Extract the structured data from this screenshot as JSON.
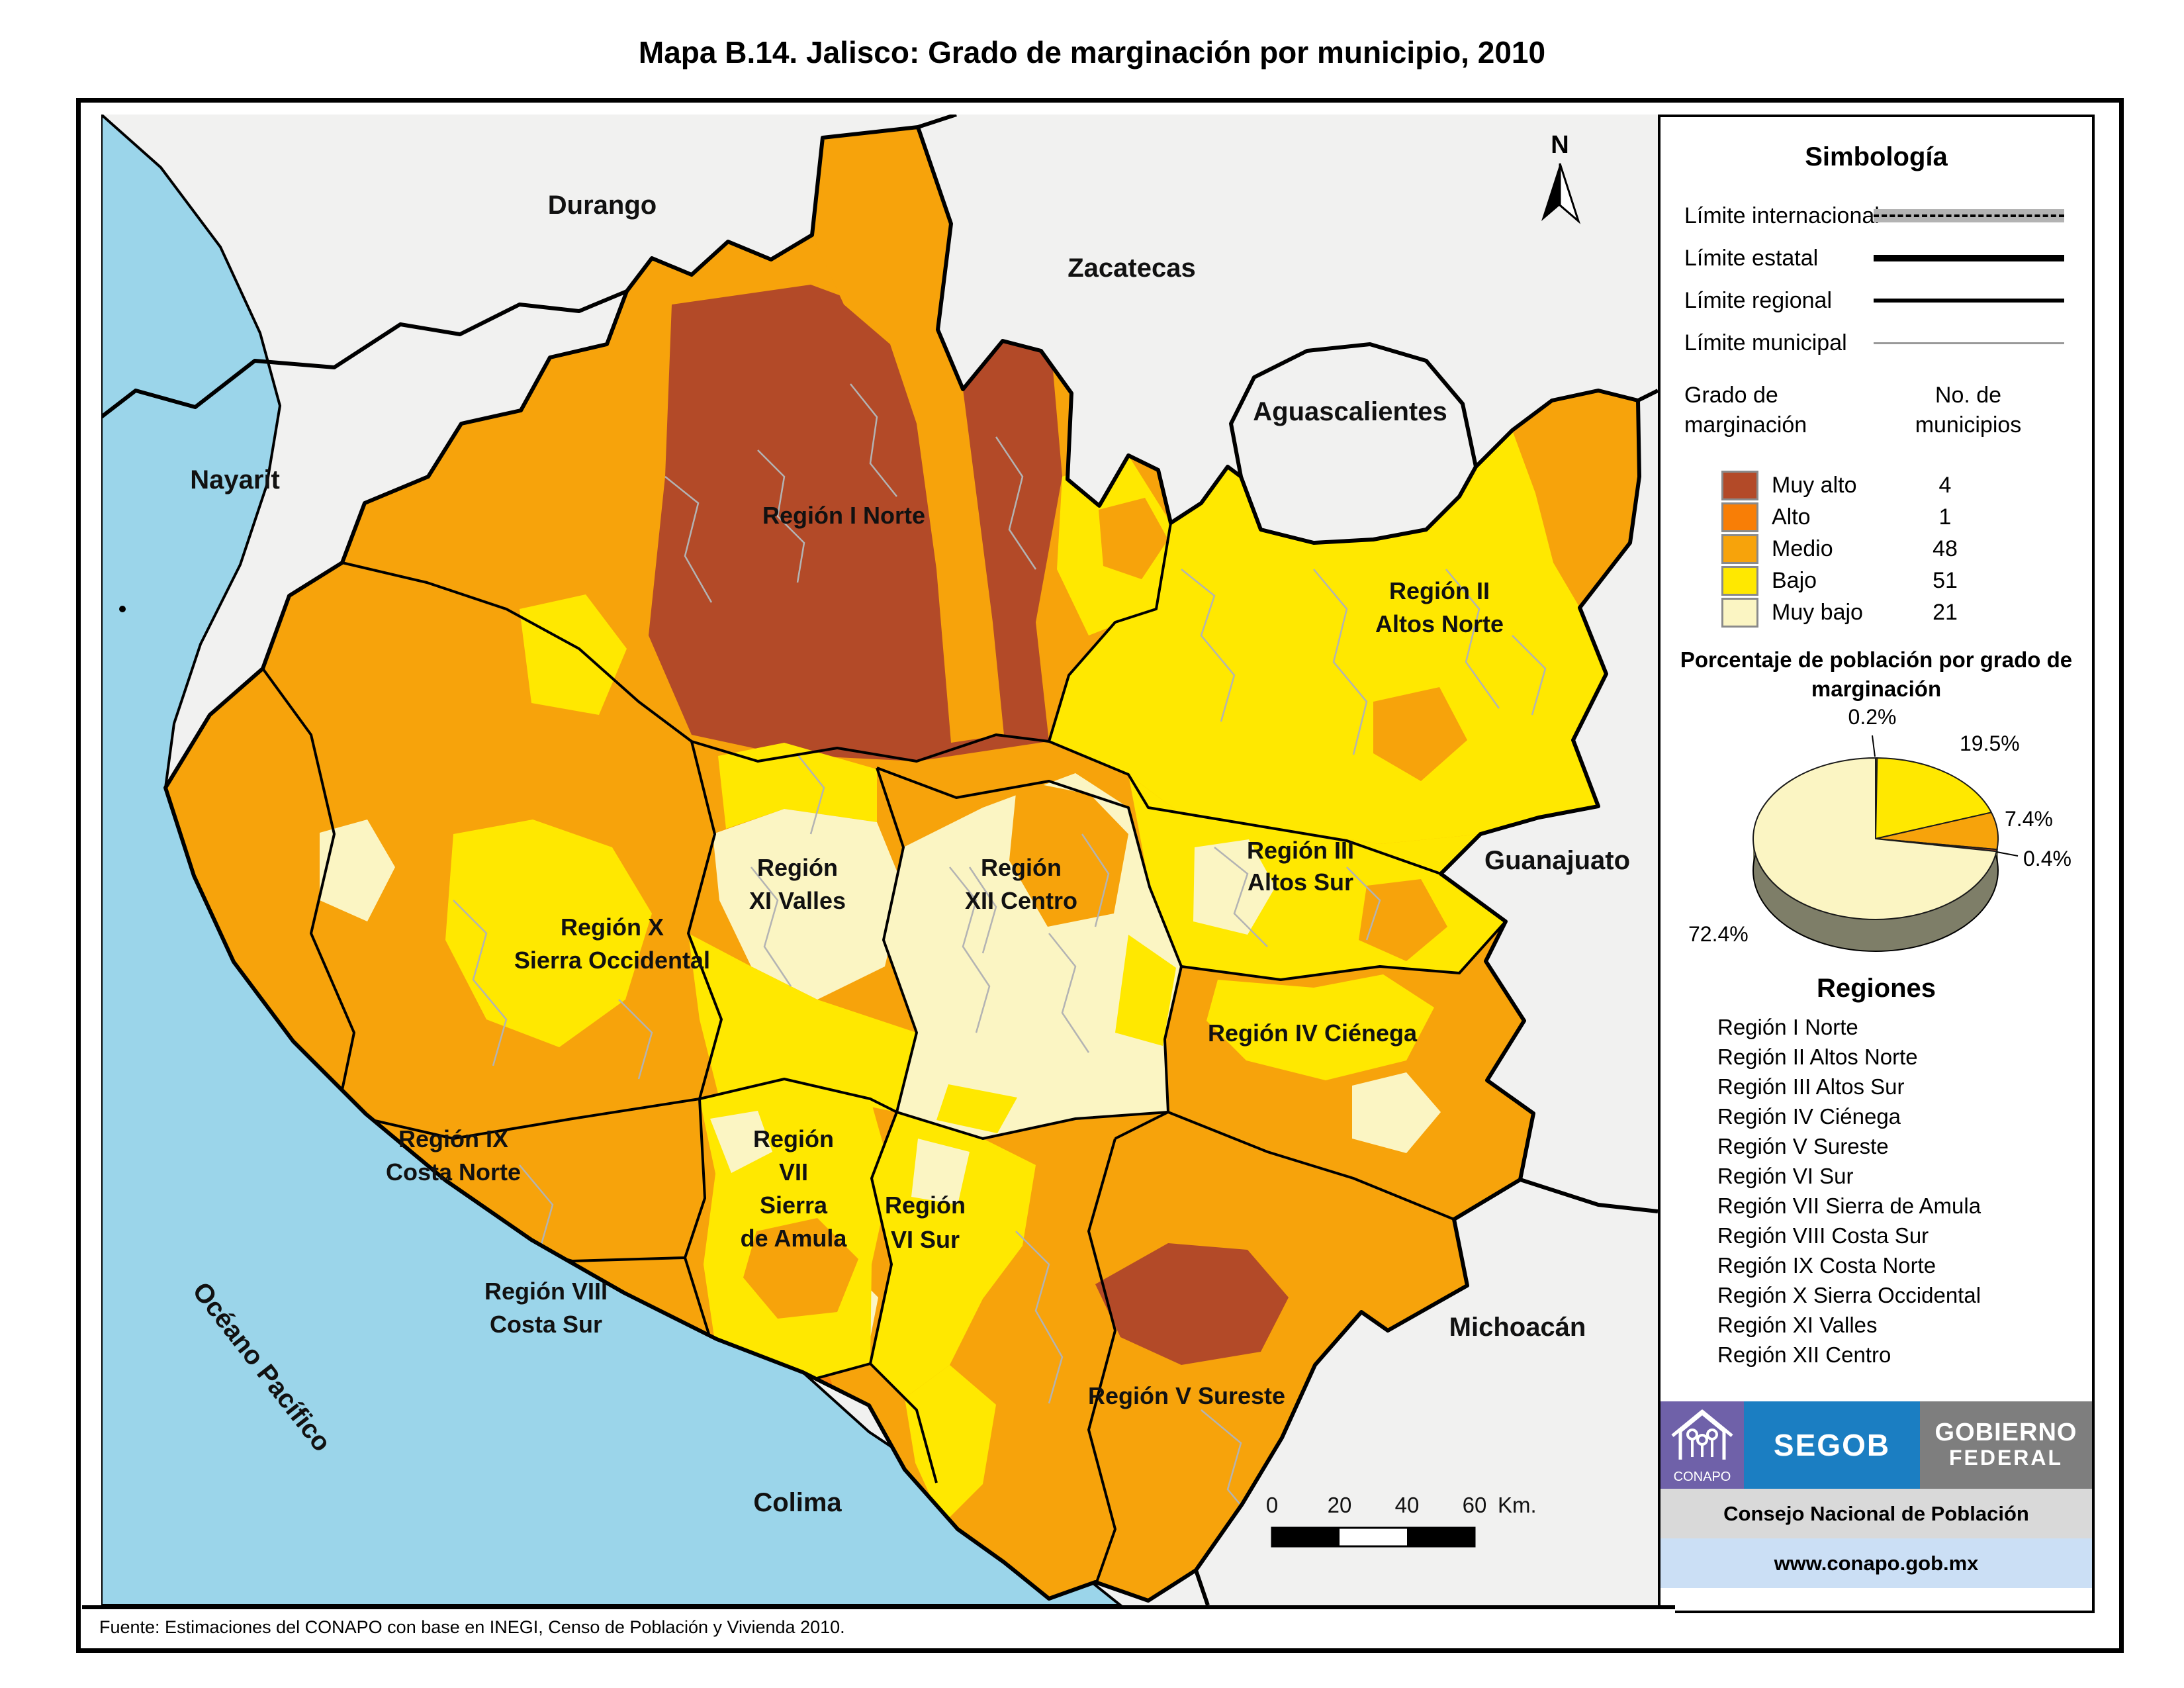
{
  "page": {
    "title": "Mapa B.14. Jalisco: Grado de marginación por municipio, 2010",
    "source": "Fuente: Estimaciones del CONAPO con base en INEGI, Censo de Población y Vivienda 2010."
  },
  "palette": {
    "muy_alto": "#B34A28",
    "alto": "#F87E06",
    "medio": "#F7A30B",
    "bajo": "#FFE800",
    "muy_bajo": "#FBF5C3",
    "ocean": "#9BD5EA",
    "outside": "#F1F1F0",
    "municipal_line": "#B3B3B3",
    "pie_rim": "#7E7E68",
    "intl_bar": "#B3B3B3",
    "conapo_purple": "#6F61A9",
    "segob_blue": "#1B7EC2",
    "gob_gray": "#7E7E7E",
    "consejo_bar": "#D9D9D9",
    "url_bar": "#CBDFF5"
  },
  "map": {
    "north": "N",
    "ocean_label": "Océano Pacífico",
    "states": [
      "Durango",
      "Zacatecas",
      "Aguascalientes",
      "Nayarit",
      "Guanajuato",
      "Michoacán",
      "Colima"
    ],
    "region_labels": [
      {
        "lines": [
          "Región I Norte"
        ]
      },
      {
        "lines": [
          "Región II",
          "Altos Norte"
        ]
      },
      {
        "lines": [
          "Región III",
          "Altos Sur"
        ]
      },
      {
        "lines": [
          "Región",
          "XII Centro"
        ]
      },
      {
        "lines": [
          "Región",
          "XI Valles"
        ]
      },
      {
        "lines": [
          "Región IV Ciénega"
        ]
      },
      {
        "lines": [
          "Región X",
          "Sierra Occidental"
        ]
      },
      {
        "lines": [
          "Región IX",
          "Costa Norte"
        ]
      },
      {
        "lines": [
          "Región VIII",
          "Costa Sur"
        ]
      },
      {
        "lines": [
          "Región",
          "VII",
          "Sierra",
          "de Amula"
        ]
      },
      {
        "lines": [
          "Región",
          "VI Sur"
        ]
      },
      {
        "lines": [
          "Región V Sureste"
        ]
      }
    ],
    "scale": {
      "ticks": [
        "0",
        "20",
        "40",
        "60"
      ],
      "unit": "Km."
    }
  },
  "sidebar": {
    "symbology_title": "Simbología",
    "boundaries": [
      {
        "label": "Límite internacional"
      },
      {
        "label": "Límite estatal"
      },
      {
        "label": "Límite regional"
      },
      {
        "label": "Límite municipal"
      }
    ],
    "degree_header_l1": "Grado de",
    "degree_header_l2": "marginación",
    "count_header_l1": "No. de",
    "count_header_l2": "municipios",
    "classes": [
      {
        "label": "Muy alto",
        "count": "4",
        "color_key": "muy_alto"
      },
      {
        "label": "Alto",
        "count": "1",
        "color_key": "alto"
      },
      {
        "label": "Medio",
        "count": "48",
        "color_key": "medio"
      },
      {
        "label": "Bajo",
        "count": "51",
        "color_key": "bajo"
      },
      {
        "label": "Muy bajo",
        "count": "21",
        "color_key": "muy_bajo"
      }
    ],
    "regions_title": "Regiones",
    "regions": [
      "Región I Norte",
      "Región II Altos Norte",
      "Región III Altos Sur",
      "Región IV Ciénega",
      "Región V Sureste",
      "Región VI Sur",
      "Región VII Sierra de Amula",
      "Región VIII Costa Sur",
      "Región IX Costa Norte",
      "Región X Sierra Occidental",
      "Región XI Valles",
      "Región XII Centro"
    ],
    "logos": {
      "conapo": "CONAPO",
      "segob": "SEGOB",
      "gob_l1": "Gobierno",
      "gob_l2": "Federal",
      "consejo": "Consejo Nacional de Población",
      "url": "www.conapo.gob.mx"
    }
  },
  "chart_data": {
    "type": "pie",
    "title": "Porcentaje de población por grado de marginación",
    "note": "slices drawn clockwise from 12 o'clock",
    "slices": [
      {
        "label": "Alto",
        "value": 0.2,
        "display": "0.2%",
        "color_key": "alto"
      },
      {
        "label": "Bajo",
        "value": 19.5,
        "display": "19.5%",
        "color_key": "bajo"
      },
      {
        "label": "Medio",
        "value": 7.4,
        "display": "7.4%",
        "color_key": "medio"
      },
      {
        "label": "Muy alto",
        "value": 0.4,
        "display": "0.4%",
        "color_key": "muy_alto"
      },
      {
        "label": "Muy bajo",
        "value": 72.4,
        "display": "72.4%",
        "color_key": "muy_bajo"
      }
    ],
    "municipality_counts": {
      "categories": [
        "Muy alto",
        "Alto",
        "Medio",
        "Bajo",
        "Muy bajo"
      ],
      "values": [
        4,
        1,
        48,
        51,
        21
      ]
    }
  }
}
